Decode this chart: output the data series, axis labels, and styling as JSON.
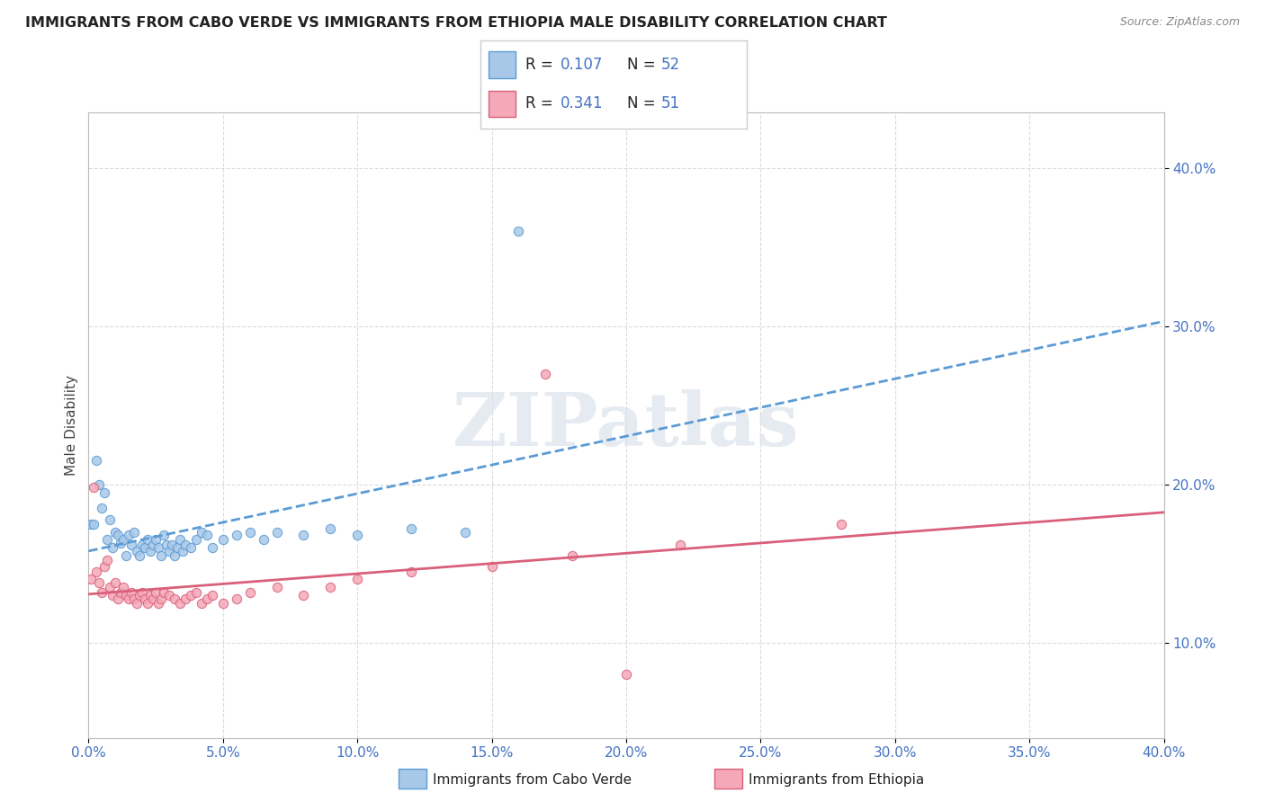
{
  "title": "IMMIGRANTS FROM CABO VERDE VS IMMIGRANTS FROM ETHIOPIA MALE DISABILITY CORRELATION CHART",
  "source": "Source: ZipAtlas.com",
  "ylabel": "Male Disability",
  "ytick_vals": [
    0.1,
    0.2,
    0.3,
    0.4
  ],
  "xmin": 0.0,
  "xmax": 0.4,
  "ymin": 0.04,
  "ymax": 0.435,
  "r_cabo": 0.107,
  "n_cabo": 52,
  "r_ethiopia": 0.341,
  "n_ethiopia": 51,
  "color_cabo": "#a8c8e8",
  "color_ethiopia": "#f4a8b8",
  "trendline_cabo_color": "#5b9bd5",
  "trendline_ethiopia_color": "#d9607a",
  "watermark_text": "ZIPatlas",
  "background_color": "#ffffff",
  "grid_color": "#cccccc",
  "cabo_scatter_x": [
    0.001,
    0.002,
    0.003,
    0.004,
    0.005,
    0.006,
    0.007,
    0.008,
    0.009,
    0.01,
    0.011,
    0.012,
    0.013,
    0.014,
    0.015,
    0.016,
    0.017,
    0.018,
    0.019,
    0.02,
    0.021,
    0.022,
    0.023,
    0.024,
    0.025,
    0.026,
    0.027,
    0.028,
    0.029,
    0.03,
    0.031,
    0.032,
    0.033,
    0.034,
    0.035,
    0.036,
    0.038,
    0.04,
    0.042,
    0.044,
    0.046,
    0.05,
    0.055,
    0.06,
    0.065,
    0.07,
    0.08,
    0.09,
    0.1,
    0.12,
    0.14,
    0.16
  ],
  "cabo_scatter_y": [
    0.175,
    0.175,
    0.215,
    0.2,
    0.185,
    0.195,
    0.165,
    0.178,
    0.16,
    0.17,
    0.168,
    0.163,
    0.165,
    0.155,
    0.168,
    0.162,
    0.17,
    0.158,
    0.155,
    0.162,
    0.16,
    0.165,
    0.158,
    0.162,
    0.165,
    0.16,
    0.155,
    0.168,
    0.162,
    0.158,
    0.162,
    0.155,
    0.16,
    0.165,
    0.158,
    0.162,
    0.16,
    0.165,
    0.17,
    0.168,
    0.16,
    0.165,
    0.168,
    0.17,
    0.165,
    0.17,
    0.168,
    0.172,
    0.168,
    0.172,
    0.17,
    0.36
  ],
  "ethiopia_scatter_x": [
    0.001,
    0.002,
    0.003,
    0.004,
    0.005,
    0.006,
    0.007,
    0.008,
    0.009,
    0.01,
    0.011,
    0.012,
    0.013,
    0.014,
    0.015,
    0.016,
    0.017,
    0.018,
    0.019,
    0.02,
    0.021,
    0.022,
    0.023,
    0.024,
    0.025,
    0.026,
    0.027,
    0.028,
    0.03,
    0.032,
    0.034,
    0.036,
    0.038,
    0.04,
    0.042,
    0.044,
    0.046,
    0.05,
    0.055,
    0.06,
    0.07,
    0.08,
    0.09,
    0.1,
    0.12,
    0.15,
    0.18,
    0.22,
    0.28,
    0.17,
    0.2
  ],
  "ethiopia_scatter_y": [
    0.14,
    0.198,
    0.145,
    0.138,
    0.132,
    0.148,
    0.152,
    0.135,
    0.13,
    0.138,
    0.128,
    0.132,
    0.135,
    0.13,
    0.128,
    0.132,
    0.128,
    0.125,
    0.13,
    0.132,
    0.128,
    0.125,
    0.13,
    0.128,
    0.132,
    0.125,
    0.128,
    0.132,
    0.13,
    0.128,
    0.125,
    0.128,
    0.13,
    0.132,
    0.125,
    0.128,
    0.13,
    0.125,
    0.128,
    0.132,
    0.135,
    0.13,
    0.135,
    0.14,
    0.145,
    0.148,
    0.155,
    0.162,
    0.175,
    0.27,
    0.08
  ]
}
